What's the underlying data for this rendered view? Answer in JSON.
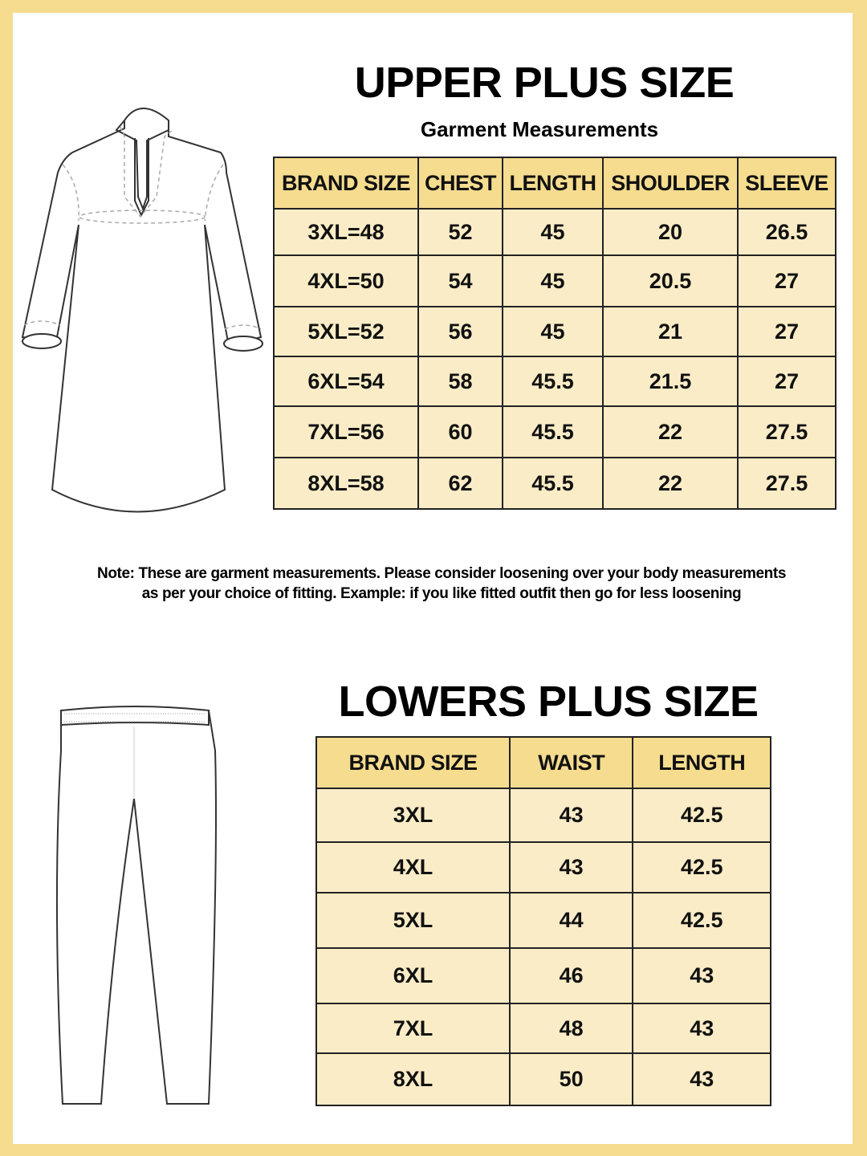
{
  "colors": {
    "frame": "#f5dc8f",
    "header": "#f5dc8f",
    "cell": "#faecc6"
  },
  "upper": {
    "title": "UPPER PLUS SIZE",
    "subtitle": "Garment Measurements",
    "headers": [
      "BRAND SIZE",
      "CHEST",
      "LENGTH",
      "SHOULDER",
      "SLEEVE"
    ],
    "rows": [
      [
        "3XL=48",
        "52",
        "45",
        "20",
        "26.5"
      ],
      [
        "4XL=50",
        "54",
        "45",
        "20.5",
        "27"
      ],
      [
        "5XL=52",
        "56",
        "45",
        "21",
        "27"
      ],
      [
        "6XL=54",
        "58",
        "45.5",
        "21.5",
        "27"
      ],
      [
        "7XL=56",
        "60",
        "45.5",
        "22",
        "27.5"
      ],
      [
        "8XL=58",
        "62",
        "45.5",
        "22",
        "27.5"
      ]
    ]
  },
  "note": {
    "line1": "Note: These are garment measurements. Please consider loosening over your body measurements",
    "line2": "as per your choice of fitting. Example: if you like fitted outfit then go for less loosening"
  },
  "lowers": {
    "title": "LOWERS PLUS SIZE",
    "headers": [
      "BRAND SIZE",
      "WAIST",
      "LENGTH"
    ],
    "rows": [
      [
        "3XL",
        "43",
        "42.5"
      ],
      [
        "4XL",
        "43",
        "42.5"
      ],
      [
        "5XL",
        "44",
        "42.5"
      ],
      [
        "6XL",
        "46",
        "43"
      ],
      [
        "7XL",
        "48",
        "43"
      ],
      [
        "8XL",
        "50",
        "43"
      ]
    ]
  }
}
